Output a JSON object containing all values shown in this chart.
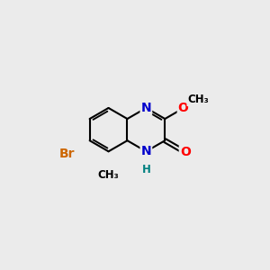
{
  "bg_color": "#ebebeb",
  "bond_color": "#000000",
  "bond_width": 1.5,
  "atom_colors": {
    "N": "#0000cc",
    "O": "#ff0000",
    "Br": "#cc6600",
    "C": "#000000",
    "H": "#008080"
  },
  "font_size_atoms": 10,
  "font_size_small": 8.5
}
